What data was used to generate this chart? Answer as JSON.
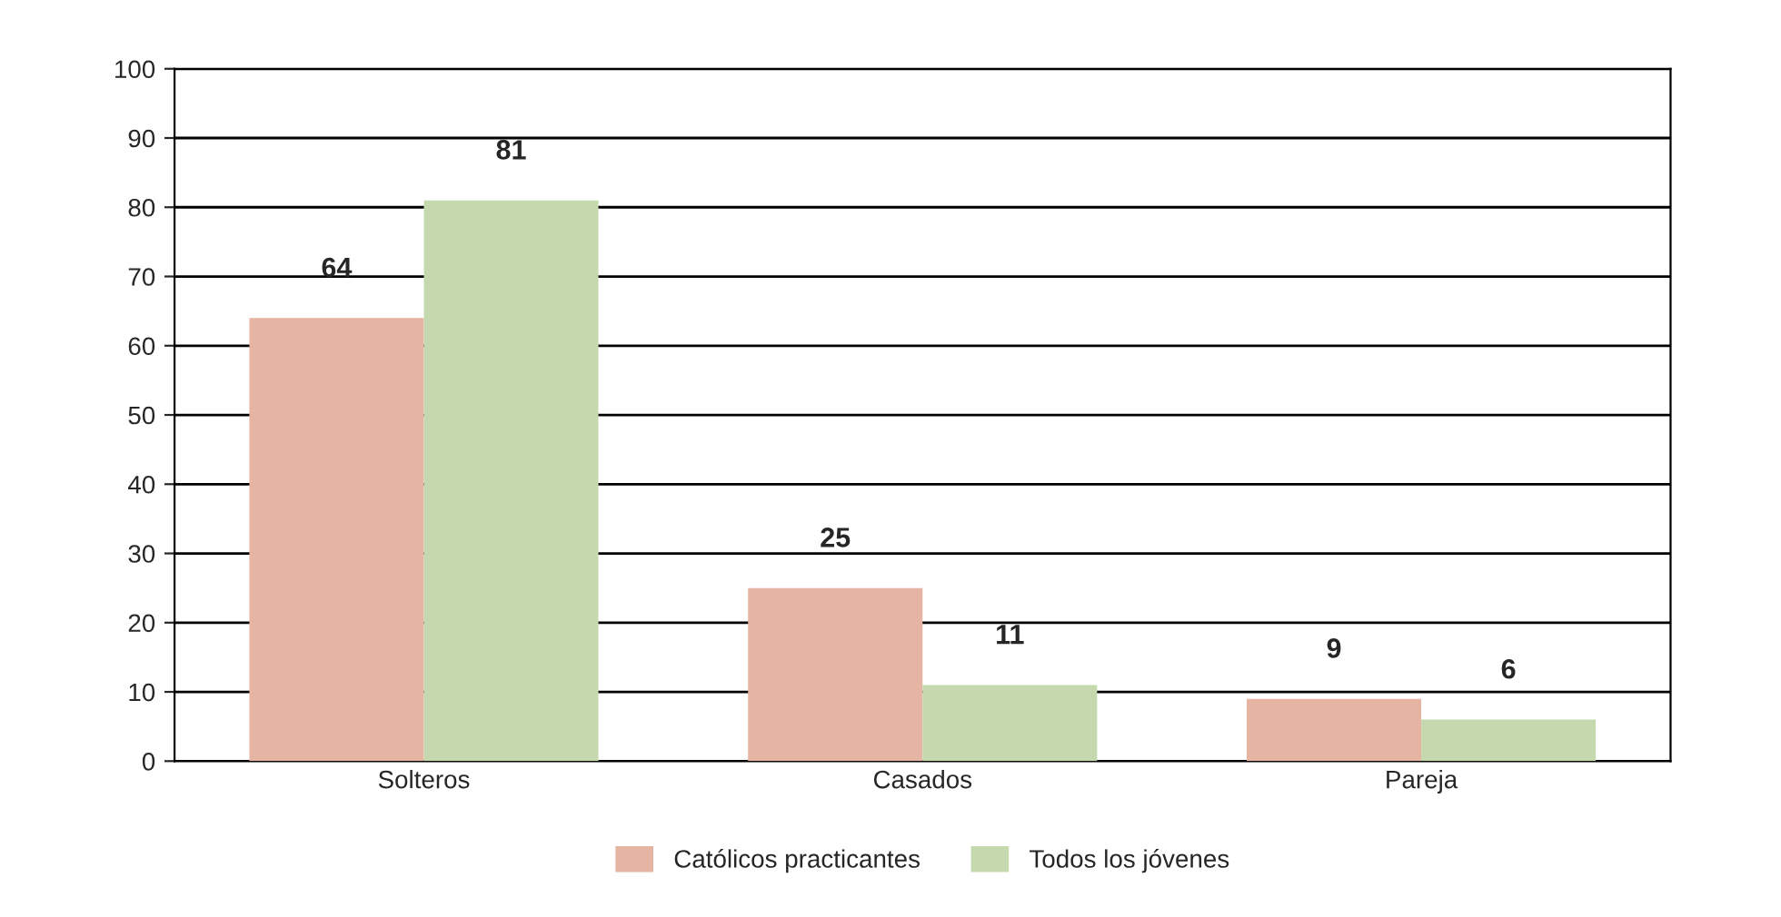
{
  "chart_data": {
    "type": "bar",
    "categories": [
      "Solteros",
      "Casados",
      "Pareja"
    ],
    "series": [
      {
        "name": "Católicos practicantes",
        "color": "#e6b4a2",
        "values": [
          64,
          25,
          9
        ]
      },
      {
        "name": "Todos los jóvenes",
        "color": "#c6d9ae",
        "values": [
          81,
          11,
          6
        ]
      }
    ],
    "ylim": [
      0,
      100
    ],
    "yticks": [
      0,
      10,
      20,
      30,
      40,
      50,
      60,
      70,
      80,
      90,
      100
    ],
    "grid": "y",
    "legend": "bottom",
    "data_labels": true
  }
}
